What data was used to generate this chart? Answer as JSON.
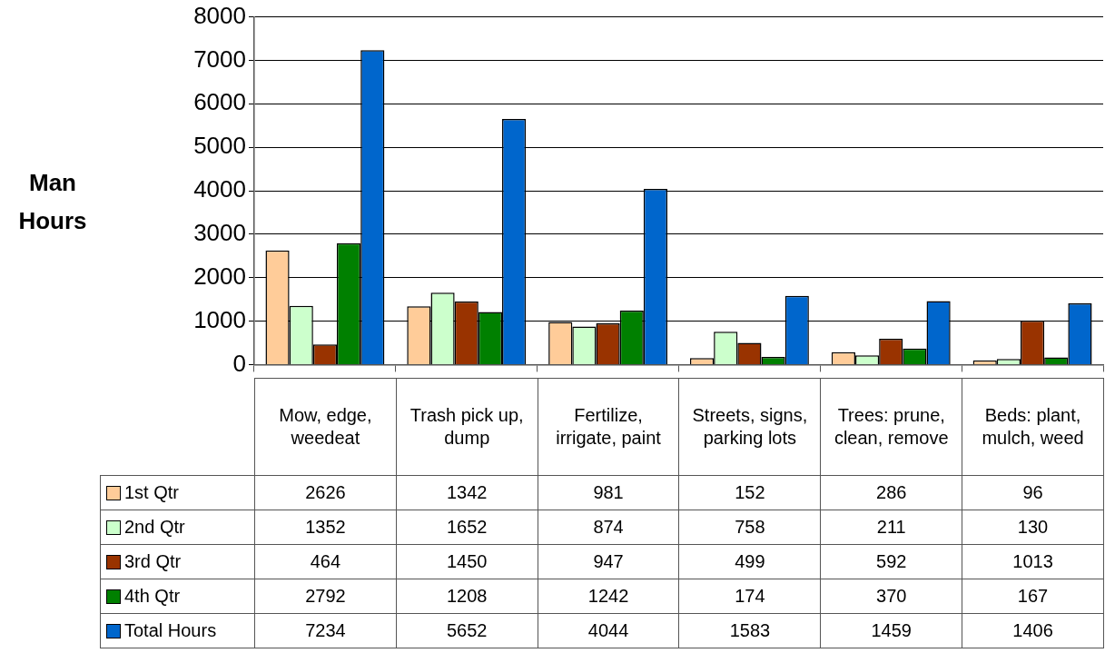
{
  "chart_data": {
    "type": "bar",
    "ylabel": "Man Hours",
    "categories": [
      "Mow, edge, weedeat",
      "Trash pick up, dump",
      "Fertilize, irrigate, paint",
      "Streets, signs, parking lots",
      "Trees: prune, clean, remove",
      "Beds: plant, mulch, weed"
    ],
    "series": [
      {
        "name": "1st Qtr",
        "color": "#ffcc99",
        "values": [
          2626,
          1342,
          981,
          152,
          286,
          96
        ]
      },
      {
        "name": "2nd Qtr",
        "color": "#ccffcc",
        "values": [
          1352,
          1652,
          874,
          758,
          211,
          130
        ]
      },
      {
        "name": "3rd Qtr",
        "color": "#993300",
        "values": [
          464,
          1450,
          947,
          499,
          592,
          1013
        ]
      },
      {
        "name": "4th Qtr",
        "color": "#008000",
        "values": [
          2792,
          1208,
          1242,
          174,
          370,
          167
        ]
      },
      {
        "name": "Total Hours",
        "color": "#0066cc",
        "values": [
          7234,
          5652,
          4044,
          1583,
          1459,
          1406
        ]
      }
    ],
    "ylim": [
      0,
      8000
    ],
    "yticks": [
      0,
      1000,
      2000,
      3000,
      4000,
      5000,
      6000,
      7000,
      8000
    ],
    "grid": "y",
    "legend": "bottom",
    "data_labels": true
  }
}
